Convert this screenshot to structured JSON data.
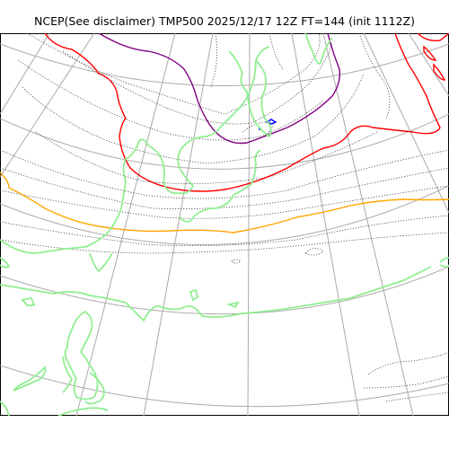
{
  "title": "NCEP(See disclaimer) TMP500 2025/12/17 12Z FT=144 (init 1112Z)",
  "colors": {
    "coastline": "#90ee90",
    "graticule": "#aaaaaa",
    "contour": "#444444",
    "isotherm_red": "#ff0000",
    "isotherm_orange": "#ffa500",
    "isotherm_purple": "#800080",
    "isotherm_blue": "#0000ff"
  }
}
